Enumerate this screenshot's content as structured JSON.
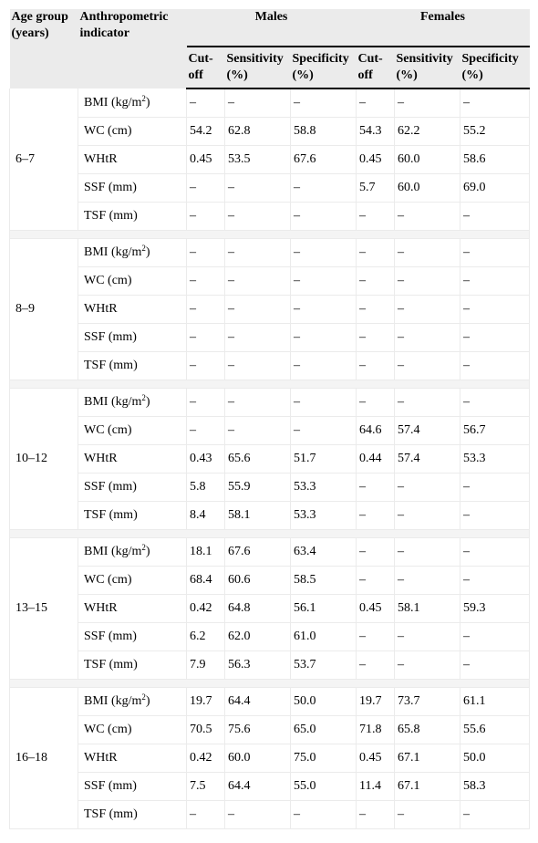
{
  "header": {
    "age_group": "Age group (years)",
    "indicator": "Anthropometric indicator",
    "males": "Males",
    "females": "Females",
    "cutoff": "Cut-off",
    "sensitivity": "Sensitivity (%)",
    "specificity": "Specificity (%)"
  },
  "indicators": [
    {
      "label": "BMI (kg/m",
      "sup": "2",
      "suffix": ")"
    },
    {
      "label": "WC (cm)"
    },
    {
      "label": "WHtR"
    },
    {
      "label": "SSF (mm)"
    },
    {
      "label": "TSF (mm)"
    }
  ],
  "groups": [
    {
      "age": "6–7",
      "rows": [
        [
          "–",
          "–",
          "–",
          "–",
          "–",
          "–"
        ],
        [
          "54.2",
          "62.8",
          "58.8",
          "54.3",
          "62.2",
          "55.2"
        ],
        [
          "0.45",
          "53.5",
          "67.6",
          "0.45",
          "60.0",
          "58.6"
        ],
        [
          "–",
          "–",
          "–",
          "5.7",
          "60.0",
          "69.0"
        ],
        [
          "–",
          "–",
          "–",
          "–",
          "–",
          "–"
        ]
      ]
    },
    {
      "age": "8–9",
      "rows": [
        [
          "–",
          "–",
          "–",
          "–",
          "–",
          "–"
        ],
        [
          "–",
          "–",
          "–",
          "–",
          "–",
          "–"
        ],
        [
          "–",
          "–",
          "–",
          "–",
          "–",
          "–"
        ],
        [
          "–",
          "–",
          "–",
          "–",
          "–",
          "–"
        ],
        [
          "–",
          "–",
          "–",
          "–",
          "–",
          "–"
        ]
      ]
    },
    {
      "age": "10–12",
      "rows": [
        [
          "–",
          "–",
          "–",
          "–",
          "–",
          "–"
        ],
        [
          "–",
          "–",
          "–",
          "64.6",
          "57.4",
          "56.7"
        ],
        [
          "0.43",
          "65.6",
          "51.7",
          "0.44",
          "57.4",
          "53.3"
        ],
        [
          "5.8",
          "55.9",
          "53.3",
          "–",
          "–",
          "–"
        ],
        [
          "8.4",
          "58.1",
          "53.3",
          "–",
          "–",
          "–"
        ]
      ]
    },
    {
      "age": "13–15",
      "rows": [
        [
          "18.1",
          "67.6",
          "63.4",
          "–",
          "–",
          "–"
        ],
        [
          "68.4",
          "60.6",
          "58.5",
          "–",
          "–",
          "–"
        ],
        [
          "0.42",
          "64.8",
          "56.1",
          "0.45",
          "58.1",
          "59.3"
        ],
        [
          "6.2",
          "62.0",
          "61.0",
          "–",
          "–",
          "–"
        ],
        [
          "7.9",
          "56.3",
          "53.7",
          "–",
          "–",
          "–"
        ]
      ]
    },
    {
      "age": "16–18",
      "rows": [
        [
          "19.7",
          "64.4",
          "50.0",
          "19.7",
          "73.7",
          "61.1"
        ],
        [
          "70.5",
          "75.6",
          "65.0",
          "71.8",
          "65.8",
          "55.6"
        ],
        [
          "0.42",
          "60.0",
          "75.0",
          "0.45",
          "67.1",
          "50.0"
        ],
        [
          "7.5",
          "64.4",
          "55.0",
          "11.4",
          "67.1",
          "58.3"
        ],
        [
          "–",
          "–",
          "–",
          "–",
          "–",
          "–"
        ]
      ]
    }
  ]
}
